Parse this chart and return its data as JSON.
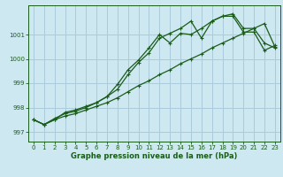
{
  "title": "Graphe pression niveau de la mer (hPa)",
  "background_color": "#cde8f0",
  "grid_color": "#aacbdb",
  "line_color": "#1a5c1a",
  "xlim": [
    -0.5,
    23.5
  ],
  "ylim": [
    996.6,
    1002.2
  ],
  "yticks": [
    997,
    998,
    999,
    1000,
    1001
  ],
  "xticks": [
    0,
    1,
    2,
    3,
    4,
    5,
    6,
    7,
    8,
    9,
    10,
    11,
    12,
    13,
    14,
    15,
    16,
    17,
    18,
    19,
    20,
    21,
    22,
    23
  ],
  "series": [
    [
      997.5,
      997.3,
      997.5,
      997.8,
      997.9,
      998.05,
      998.2,
      998.45,
      998.75,
      999.35,
      999.85,
      1000.25,
      1000.85,
      1001.05,
      1001.25,
      1001.55,
      1000.85,
      1001.55,
      1001.75,
      1001.75,
      1001.1,
      1001.1,
      1000.35,
      1000.55
    ],
    [
      997.5,
      997.3,
      997.55,
      997.75,
      997.85,
      998.0,
      998.2,
      998.45,
      998.95,
      999.55,
      999.95,
      1000.45,
      1001.0,
      1000.65,
      1001.05,
      1001.0,
      1001.25,
      1001.55,
      1001.75,
      1001.85,
      1001.25,
      1001.25,
      1000.65,
      1000.45
    ],
    [
      997.5,
      997.3,
      997.5,
      997.65,
      997.75,
      997.9,
      998.05,
      998.2,
      998.4,
      998.65,
      998.9,
      999.1,
      999.35,
      999.55,
      999.8,
      1000.0,
      1000.2,
      1000.45,
      1000.65,
      1000.85,
      1001.05,
      1001.25,
      1001.45,
      1000.5
    ]
  ]
}
